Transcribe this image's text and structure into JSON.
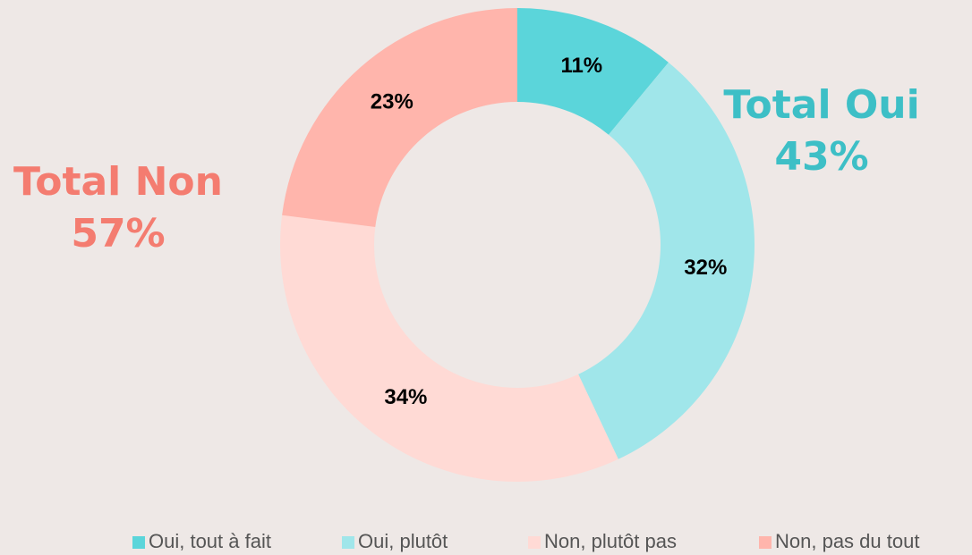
{
  "chart_data": {
    "type": "donut",
    "categories": [
      "Oui, tout à fait",
      "Oui, plutôt",
      "Non, plutôt pas",
      "Non, pas du tout"
    ],
    "values": [
      11,
      32,
      34,
      23
    ],
    "value_labels": [
      "11%",
      "32%",
      "34%",
      "23%"
    ],
    "colors": [
      "#5bd5da",
      "#a0e6ea",
      "#ffdad5",
      "#ffb5ac"
    ],
    "annotations": [
      {
        "lines": [
          "Total Oui",
          "43%"
        ],
        "color": "#3dbfc6"
      },
      {
        "lines": [
          "Total Non",
          "57%"
        ],
        "color": "#f47c70"
      }
    ],
    "legend": "bottom"
  }
}
